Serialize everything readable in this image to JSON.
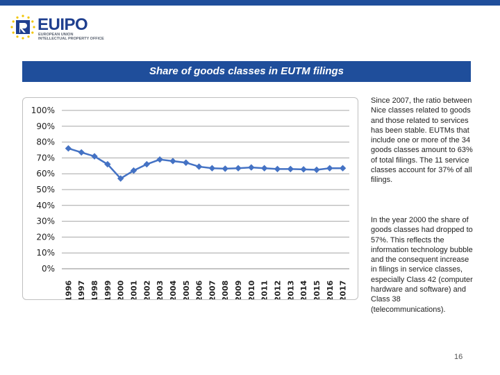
{
  "header": {
    "logo_text": "EUIPO",
    "logo_sub1": "EUROPEAN UNION",
    "logo_sub2": "INTELLECTUAL PROPERTY OFFICE",
    "brand_color": "#1f4e9b"
  },
  "slide": {
    "title": "Share of goods classes in EUTM filings",
    "paragraph1": "Since 2007, the ratio between Nice classes related to goods and those related to services has been stable. EUTMs that include one or more of the 34 goods classes amount to 63% of total filings. The 11 service classes account for 37% of all filings.",
    "paragraph2": "In the year 2000 the share of goods classes had dropped to 57%. This reflects the information technology bubble and the consequent increase in filings in service classes, especially Class 42 (computer hardware and software) and Class 38 (telecommunications).",
    "page_number": "16"
  },
  "chart_data": {
    "type": "line",
    "categories": [
      "1996",
      "1997",
      "1998",
      "1999",
      "2000",
      "2001",
      "2002",
      "2003",
      "2004",
      "2005",
      "2006",
      "2007",
      "2008",
      "2009",
      "2010",
      "2011",
      "2012",
      "2013",
      "2014",
      "2015",
      "2016",
      "2017"
    ],
    "series": [
      {
        "values": [
          0.76,
          0.735,
          0.71,
          0.66,
          0.57,
          0.62,
          0.66,
          0.69,
          0.68,
          0.67,
          0.645,
          0.635,
          0.632,
          0.635,
          0.64,
          0.635,
          0.63,
          0.63,
          0.628,
          0.625,
          0.635,
          0.635
        ]
      }
    ],
    "y_ticks": [
      "0%",
      "10%",
      "20%",
      "30%",
      "40%",
      "50%",
      "60%",
      "70%",
      "80%",
      "90%",
      "100%"
    ],
    "ylim": [
      0,
      1
    ],
    "grid": true,
    "line_color": "#4472c4"
  }
}
